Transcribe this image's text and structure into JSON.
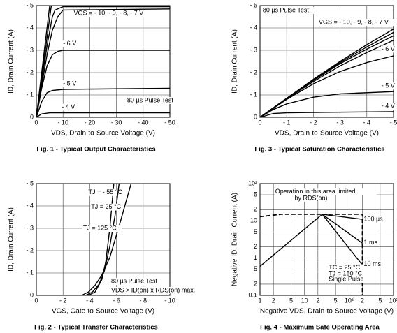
{
  "chart_data": [
    {
      "type": "line",
      "title": "Fig. 1 - Typical Output Characteristics",
      "xlabel": "VDS, Drain-to-Source Voltage (V)",
      "ylabel": "ID, Drain Current (A)",
      "xlim": [
        0,
        -50
      ],
      "ylim": [
        0,
        -5
      ],
      "grid": true,
      "xticks": [
        0,
        {
          "value": -10,
          "label": "- 10"
        },
        {
          "value": -20,
          "label": "- 20"
        },
        {
          "value": -30,
          "label": "- 30"
        },
        {
          "value": -40,
          "label": "- 40"
        },
        {
          "value": -50,
          "label": "- 50"
        }
      ],
      "yticks": [
        0,
        {
          "value": -1,
          "label": "- 1"
        },
        {
          "value": -2,
          "label": "- 2"
        },
        {
          "value": -3,
          "label": "- 3"
        },
        {
          "value": -4,
          "label": "- 4"
        },
        {
          "value": -5,
          "label": "- 5"
        }
      ],
      "annotations": [
        "VGS = - 10, - 9, - 8, - 7 V",
        "80 µs Pulse Test"
      ],
      "series": [
        {
          "color": "#000000",
          "x": [
            0,
            -5
          ],
          "values": [
            0,
            -5
          ]
        },
        {
          "color": "#000000",
          "x": [
            0,
            -5.6
          ],
          "values": [
            0,
            -5
          ]
        },
        {
          "color": "#000000",
          "x": [
            0,
            -2,
            -4,
            -6,
            -7,
            -10,
            -50
          ],
          "values": [
            0,
            -1.6,
            -3.2,
            -4.5,
            -4.8,
            -4.95,
            -4.95
          ]
        },
        {
          "color": "#000000",
          "x": [
            0,
            -2,
            -4,
            -6,
            -8,
            -10,
            -50
          ],
          "values": [
            0,
            -1.4,
            -2.8,
            -3.9,
            -4.5,
            -4.8,
            -4.85
          ]
        },
        {
          "name": "- 6 V",
          "color": "#000000",
          "x": [
            0,
            -2,
            -4,
            -6,
            -8,
            -10,
            -50
          ],
          "values": [
            0,
            -1.3,
            -2.3,
            -2.8,
            -2.95,
            -3,
            -3
          ]
        },
        {
          "name": "- 5 V",
          "color": "#000000",
          "x": [
            0,
            -2,
            -4,
            -6,
            -10,
            -50
          ],
          "values": [
            0,
            -0.7,
            -1.1,
            -1.2,
            -1.25,
            -1.3
          ]
        },
        {
          "name": "- 4 V",
          "color": "#000000",
          "x": [
            0,
            -2,
            -5,
            -10,
            -50
          ],
          "values": [
            0,
            -0.15,
            -0.2,
            -0.2,
            -0.2
          ]
        }
      ]
    },
    {
      "type": "line",
      "title": "Fig. 3 - Typical Saturation Characteristics",
      "xlabel": "VDS, Drain-to-Source Voltage (V)",
      "ylabel": "ID, Drain Current (A)",
      "xlim": [
        0,
        -5
      ],
      "ylim": [
        0,
        -5
      ],
      "grid": true,
      "xticks": [
        0,
        {
          "value": -1,
          "label": "- 1"
        },
        {
          "value": -2,
          "label": "- 2"
        },
        {
          "value": -3,
          "label": "- 3"
        },
        {
          "value": -4,
          "label": "- 4"
        },
        {
          "value": -5,
          "label": "- 5"
        }
      ],
      "yticks": [
        0,
        {
          "value": -1,
          "label": "- 1"
        },
        {
          "value": -2,
          "label": "- 2"
        },
        {
          "value": -3,
          "label": "- 3"
        },
        {
          "value": -4,
          "label": "- 4"
        },
        {
          "value": -5,
          "label": "- 5"
        }
      ],
      "annotations": [
        "80 µs Pulse Test",
        "VGS = - 10, - 9, - 8, - 7 V"
      ],
      "series": [
        {
          "color": "#000000",
          "x": [
            0,
            -1,
            -2,
            -3,
            -4,
            -5
          ],
          "values": [
            0,
            -0.85,
            -1.7,
            -2.5,
            -3.25,
            -3.95
          ]
        },
        {
          "color": "#000000",
          "x": [
            0,
            -1,
            -2,
            -3,
            -4,
            -5
          ],
          "values": [
            0,
            -0.85,
            -1.68,
            -2.45,
            -3.15,
            -3.8
          ]
        },
        {
          "color": "#000000",
          "x": [
            0,
            -1,
            -2,
            -3,
            -4,
            -5
          ],
          "values": [
            0,
            -0.85,
            -1.65,
            -2.4,
            -3.05,
            -3.65
          ]
        },
        {
          "color": "#000000",
          "x": [
            0,
            -1,
            -2,
            -3,
            -4,
            -5
          ],
          "values": [
            0,
            -0.83,
            -1.6,
            -2.3,
            -2.9,
            -3.45
          ]
        },
        {
          "name": "- 6 V",
          "color": "#000000",
          "x": [
            0,
            -1,
            -2,
            -3,
            -4,
            -5
          ],
          "values": [
            0,
            -0.8,
            -1.5,
            -2.05,
            -2.45,
            -2.75
          ]
        },
        {
          "name": "- 5 V",
          "color": "#000000",
          "x": [
            0,
            -0.5,
            -1,
            -2,
            -3,
            -5
          ],
          "values": [
            0,
            -0.35,
            -0.6,
            -0.9,
            -1.05,
            -1.15
          ]
        },
        {
          "name": "- 4 V",
          "color": "#000000",
          "x": [
            0,
            -0.5,
            -1,
            -2,
            -5
          ],
          "values": [
            0,
            -0.17,
            -0.2,
            -0.22,
            -0.25
          ]
        }
      ]
    },
    {
      "type": "line",
      "title": "Fig. 2 - Typical Transfer Characteristics",
      "xlabel": "VGS, Gate-to-Source Voltage (V)",
      "ylabel": "ID, Drain Current (A)",
      "xlim": [
        0,
        -10
      ],
      "ylim": [
        0,
        -5
      ],
      "grid": true,
      "xticks": [
        0,
        {
          "value": -2,
          "label": "- 2"
        },
        {
          "value": -4,
          "label": "- 4"
        },
        {
          "value": -6,
          "label": "- 6"
        },
        {
          "value": -8,
          "label": "- 8"
        },
        {
          "value": -10,
          "label": "- 10"
        }
      ],
      "yticks": [
        0,
        {
          "value": -1,
          "label": "- 1"
        },
        {
          "value": -2,
          "label": "- 2"
        },
        {
          "value": -3,
          "label": "- 3"
        },
        {
          "value": -4,
          "label": "- 4"
        },
        {
          "value": -5,
          "label": "- 5"
        }
      ],
      "annotations": [
        "80 µs Pulse Test",
        "VDS > ID(on) x RDS(on) max."
      ],
      "series": [
        {
          "name": "TJ = - 55 °C",
          "color": "#000000",
          "x": [
            -3.9,
            -4.4,
            -4.9,
            -5.2,
            -5.5,
            -5.8
          ],
          "values": [
            0,
            -0.15,
            -0.7,
            -1.5,
            -3,
            -5
          ]
        },
        {
          "name": "TJ = 25 °C",
          "color": "#000000",
          "x": [
            -3.7,
            -4.2,
            -4.7,
            -5.1,
            -5.5,
            -5.9,
            -6.2
          ],
          "values": [
            0,
            -0.15,
            -0.5,
            -1.1,
            -2.2,
            -3.6,
            -5
          ]
        },
        {
          "name": "TJ = 125 °C",
          "color": "#000000",
          "x": [
            -3.4,
            -3.9,
            -4.4,
            -4.9,
            -5.5,
            -6.2,
            -7.1
          ],
          "values": [
            0,
            -0.15,
            -0.45,
            -0.9,
            -1.7,
            -3.1,
            -5
          ]
        }
      ]
    },
    {
      "type": "line",
      "title": "Fig. 4 - Maximum Safe Operating Area",
      "xlabel": "Negative VDS, Drain-to-Source Voltage (V)",
      "ylabel": "Negative ID, Drain Current (A)",
      "xlim": [
        1,
        1000
      ],
      "ylim": [
        0.1,
        100
      ],
      "xscale": "log",
      "yscale": "log",
      "grid": true,
      "xticks": [
        1,
        2,
        5,
        10,
        {
          "value": 20,
          "label": "2"
        },
        {
          "value": 50,
          "label": "5"
        },
        {
          "value": 100,
          "label": "10²"
        },
        {
          "value": 200,
          "label": "2"
        },
        {
          "value": 500,
          "label": "5"
        },
        {
          "value": 1000,
          "label": "10³"
        }
      ],
      "yticks": [
        0.1,
        {
          "value": 0.2,
          "label": "2"
        },
        {
          "value": 0.5,
          "label": "5"
        },
        1,
        2,
        5,
        10,
        {
          "value": 20,
          "label": "2"
        },
        {
          "value": 50,
          "label": "5"
        },
        {
          "value": 100,
          "label": "10²"
        }
      ],
      "annotations": [
        "Operation in this area limited",
        "by RDS(on)",
        "TC = 25 °C",
        "TJ = 150 °C",
        "Single Pulse"
      ],
      "series": [
        {
          "color": "#000000",
          "dashed": true,
          "x": [
            1,
            3,
            200,
            200
          ],
          "values": [
            13,
            15,
            15,
            0.1
          ]
        },
        {
          "color": "#000000",
          "x": [
            1,
            25
          ],
          "values": [
            0.6,
            15
          ]
        },
        {
          "name": "100 µs",
          "color": "#000000",
          "x": [
            25,
            200
          ],
          "values": [
            15,
            11
          ]
        },
        {
          "name": "1 ms",
          "color": "#000000",
          "x": [
            25,
            200
          ],
          "values": [
            15,
            2.5
          ]
        },
        {
          "name": "10 ms",
          "color": "#000000",
          "x": [
            25,
            200
          ],
          "values": [
            15,
            0.65
          ]
        }
      ]
    }
  ]
}
